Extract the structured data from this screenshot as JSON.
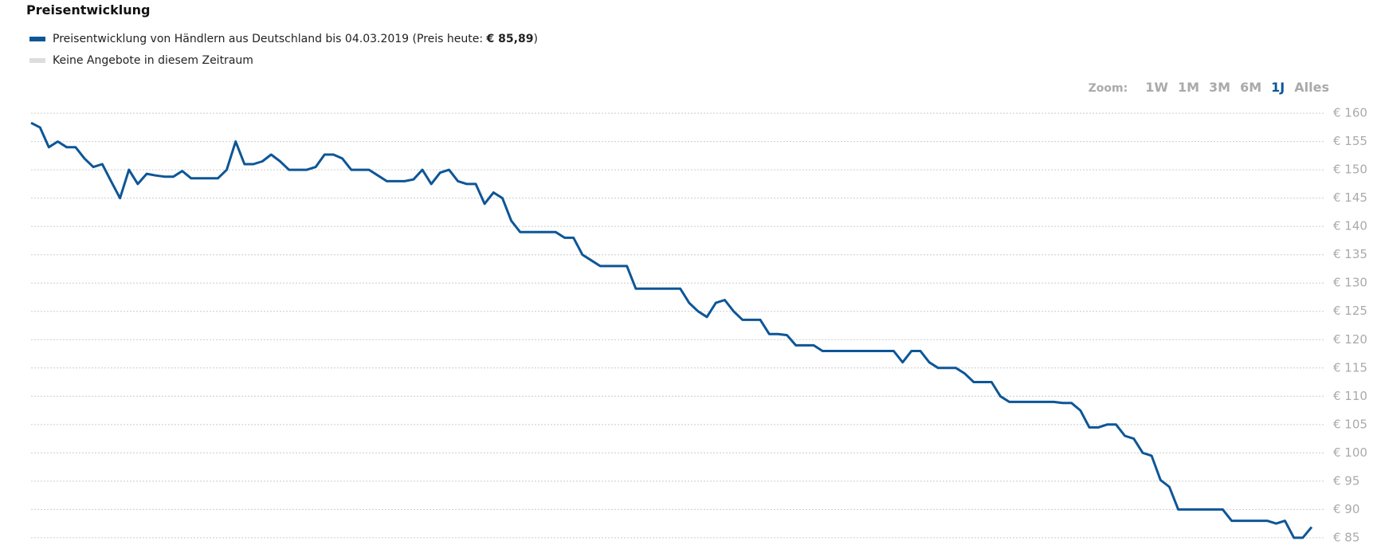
{
  "title": "Preisentwicklung",
  "zoom": {
    "label": "Zoom:",
    "options": [
      "1W",
      "1M",
      "3M",
      "6M",
      "1J",
      "Alles"
    ],
    "active": "1J"
  },
  "chart_data": {
    "type": "line",
    "series": [
      {
        "name": "Preisentwicklung von Händlern aus Deutschland bis 04.03.2019 (Preis heute:",
        "current_price": "€ 85,89",
        "closing": ")",
        "color": "#0d5697",
        "values": [
          158.3,
          157.5,
          154,
          155,
          154,
          154,
          152,
          150.5,
          151,
          148,
          145,
          150,
          147.5,
          149.3,
          149,
          148.8,
          148.8,
          149.8,
          148.5,
          148.5,
          148.5,
          148.5,
          150,
          155,
          151,
          151,
          151.5,
          152.7,
          151.5,
          150,
          150,
          150,
          150.5,
          152.7,
          152.7,
          152,
          150,
          150,
          150,
          149,
          148,
          148,
          148,
          148.3,
          150,
          147.5,
          149.5,
          150,
          148,
          147.5,
          147.5,
          144,
          146,
          145,
          141,
          139,
          139,
          139,
          139,
          139,
          138,
          138,
          135,
          134,
          133,
          133,
          133,
          133,
          129,
          129,
          129,
          129,
          129,
          129,
          126.5,
          125,
          124,
          126.5,
          127,
          125,
          123.5,
          123.5,
          123.5,
          121,
          121,
          120.8,
          119,
          119,
          119,
          118,
          118,
          118,
          118,
          118,
          118,
          118,
          118,
          118,
          116,
          118,
          118,
          116,
          115,
          115,
          115,
          114,
          112.5,
          112.5,
          112.5,
          110,
          109,
          109,
          109,
          109,
          109,
          109,
          108.8,
          108.8,
          107.5,
          104.5,
          104.5,
          105,
          105,
          103,
          102.5,
          100,
          99.5,
          95.2,
          94,
          90,
          90,
          90,
          90,
          90,
          90,
          88,
          88,
          88,
          88,
          88,
          87.5,
          88,
          85,
          85,
          86.9
        ]
      }
    ],
    "no_offer_legend": {
      "name": "Keine Angebote in diesem Zeitraum",
      "color": "#dddddd"
    },
    "ylim": [
      84,
      161
    ],
    "yticks": [
      {
        "value": 85,
        "label": "€ 85"
      },
      {
        "value": 90,
        "label": "€ 90"
      },
      {
        "value": 95,
        "label": "€ 95"
      },
      {
        "value": 100,
        "label": "€ 100"
      },
      {
        "value": 105,
        "label": "€ 105"
      },
      {
        "value": 110,
        "label": "€ 110"
      },
      {
        "value": 115,
        "label": "€ 115"
      },
      {
        "value": 120,
        "label": "€ 120"
      },
      {
        "value": 125,
        "label": "€ 125"
      },
      {
        "value": 130,
        "label": "€ 130"
      },
      {
        "value": 135,
        "label": "€ 135"
      },
      {
        "value": 140,
        "label": "€ 140"
      },
      {
        "value": 145,
        "label": "€ 145"
      },
      {
        "value": 150,
        "label": "€ 150"
      },
      {
        "value": 155,
        "label": "€ 155"
      },
      {
        "value": 160,
        "label": "€ 160"
      }
    ],
    "grid": true
  }
}
